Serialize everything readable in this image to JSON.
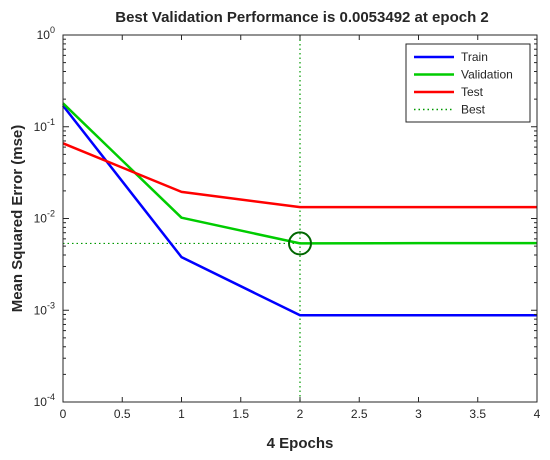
{
  "chart_data": {
    "type": "line",
    "title": "Best Validation Performance is 0.0053492 at epoch 2",
    "xlabel": "4 Epochs",
    "ylabel": "Mean Squared Error  (mse)",
    "y_scale": "log",
    "xlim": [
      0,
      4
    ],
    "ylim": [
      0.0001,
      1
    ],
    "x_ticks": [
      "0",
      "0.5",
      "1",
      "1.5",
      "2",
      "2.5",
      "3",
      "3.5",
      "4"
    ],
    "y_ticks": [
      {
        "base": "10",
        "exp": "0"
      },
      {
        "base": "10",
        "exp": "-1"
      },
      {
        "base": "10",
        "exp": "-2"
      },
      {
        "base": "10",
        "exp": "-3"
      },
      {
        "base": "10",
        "exp": "-4"
      }
    ],
    "grid": false,
    "legend_position": "top-right",
    "x": [
      0,
      1,
      2,
      3,
      4
    ],
    "series": [
      {
        "name": "Train",
        "color": "#0000ff",
        "values": [
          0.17,
          0.0038,
          0.00088,
          0.00088,
          0.00088
        ]
      },
      {
        "name": "Validation",
        "color": "#00cc00",
        "values": [
          0.18,
          0.0102,
          0.0053492,
          0.0054,
          0.0054
        ]
      },
      {
        "name": "Test",
        "color": "#ff0000",
        "values": [
          0.066,
          0.0195,
          0.0133,
          0.0133,
          0.0133
        ]
      }
    ],
    "best": {
      "name": "Best",
      "color": "#009900",
      "epoch": 2,
      "value": 0.0053492
    }
  }
}
